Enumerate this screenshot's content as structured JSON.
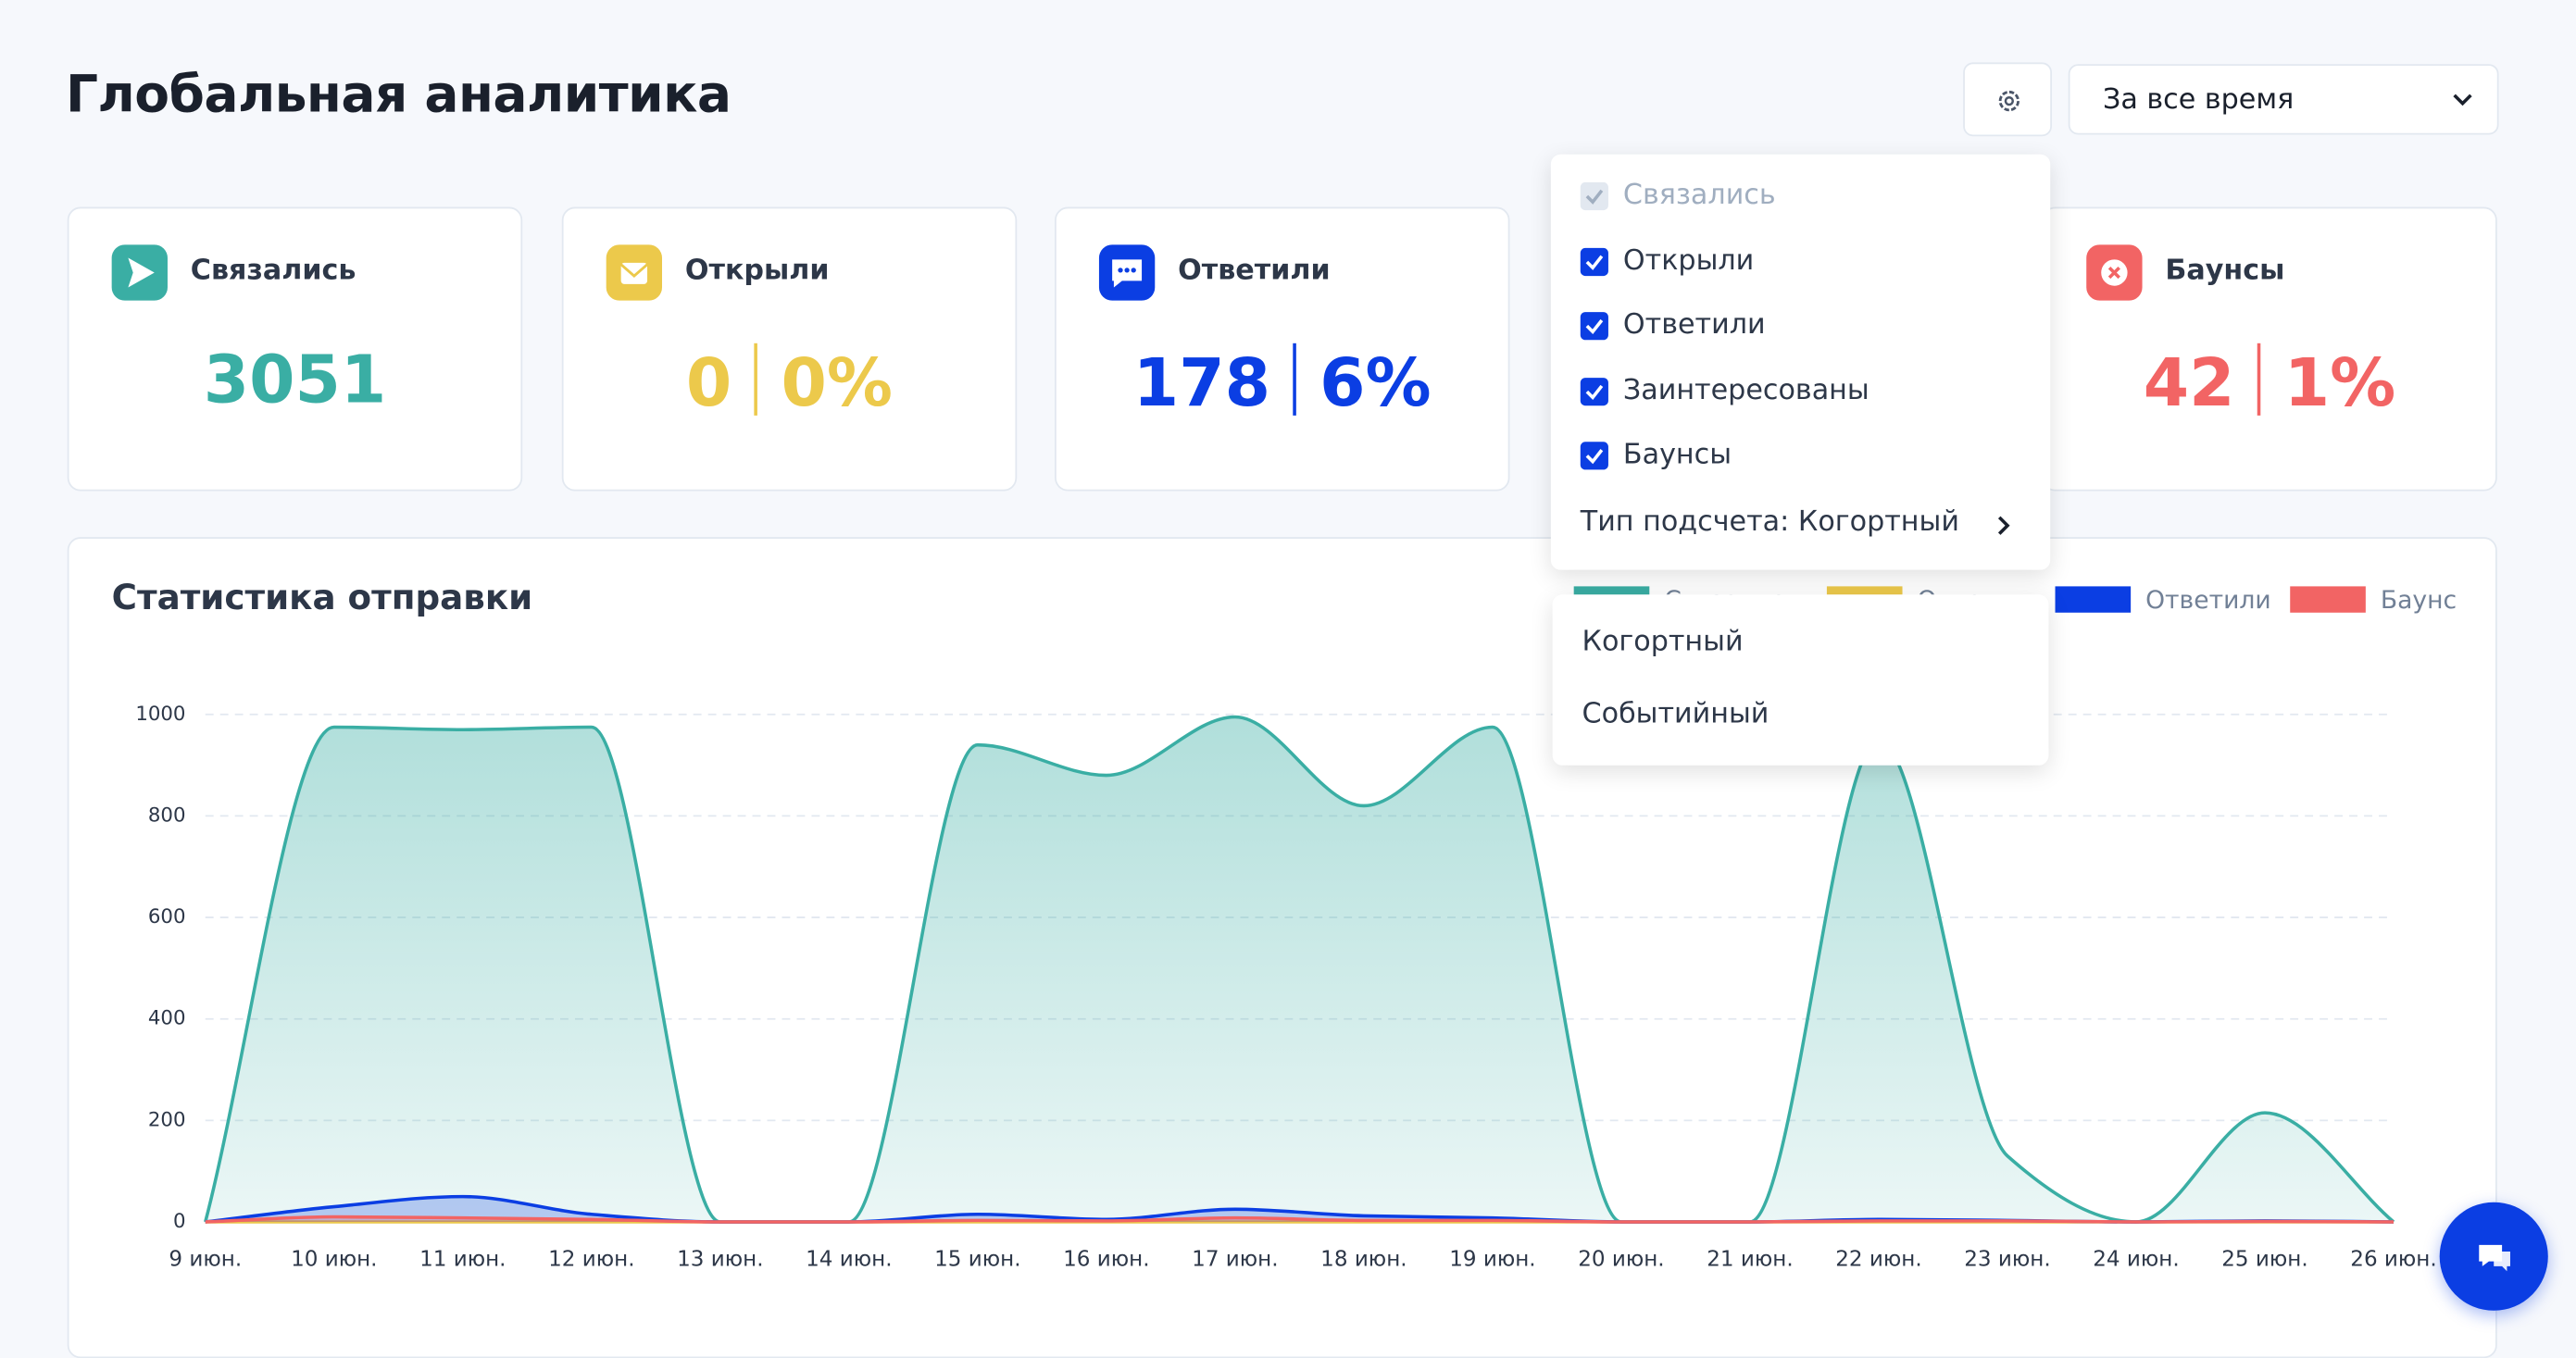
{
  "header": {
    "title": "Глобальная аналитика",
    "period": "За все время"
  },
  "cards": [
    {
      "label": "Связались",
      "value": "3051",
      "color": "#3aaea4"
    },
    {
      "label": "Открыли",
      "value": "0",
      "percent": "0%",
      "color": "#ecc94b"
    },
    {
      "label": "Ответили",
      "value": "178",
      "percent": "6%",
      "color": "#0b3ee3"
    },
    {
      "label": "Баунсы",
      "value": "42",
      "percent": "1%",
      "color": "#f26464"
    }
  ],
  "settings_menu": {
    "items": [
      {
        "label": "Связались",
        "checked": true,
        "disabled": true
      },
      {
        "label": "Открыли",
        "checked": true,
        "disabled": false
      },
      {
        "label": "Ответили",
        "checked": true,
        "disabled": false
      },
      {
        "label": "Заинтересованы",
        "checked": true,
        "disabled": false
      },
      {
        "label": "Баунсы",
        "checked": true,
        "disabled": false
      }
    ],
    "count_type": "Тип подсчета: Когортный",
    "count_options": [
      "Когортный",
      "Событийный"
    ]
  },
  "chart_data": {
    "type": "area",
    "title": "Статистика отправки",
    "categories": [
      "9 июн.",
      "10 июн.",
      "11 июн.",
      "12 июн.",
      "13 июн.",
      "14 июн.",
      "15 июн.",
      "16 июн.",
      "17 июн.",
      "18 июн.",
      "19 июн.",
      "20 июн.",
      "21 июн.",
      "22 июн.",
      "23 июн.",
      "24 июн.",
      "25 июн.",
      "26 июн."
    ],
    "series": [
      {
        "name": "Связались",
        "color": "#3aaea4",
        "values": [
          0,
          975,
          970,
          975,
          0,
          0,
          940,
          880,
          995,
          820,
          975,
          0,
          0,
          950,
          130,
          0,
          215,
          0
        ]
      },
      {
        "name": "Открыли",
        "color": "#ecc94b",
        "values": [
          0,
          0,
          0,
          0,
          0,
          0,
          0,
          0,
          0,
          0,
          0,
          0,
          0,
          0,
          0,
          0,
          0,
          0
        ]
      },
      {
        "name": "Ответили",
        "color": "#0b3ee3",
        "values": [
          0,
          30,
          50,
          15,
          0,
          0,
          15,
          5,
          25,
          12,
          8,
          0,
          0,
          5,
          3,
          0,
          2,
          0
        ]
      },
      {
        "name": "Баунс",
        "color": "#f26464",
        "values": [
          0,
          10,
          8,
          5,
          0,
          0,
          3,
          2,
          8,
          3,
          3,
          0,
          0,
          2,
          2,
          0,
          1,
          0
        ]
      }
    ],
    "ylim": [
      0,
      1000
    ],
    "yticks": [
      0,
      200,
      400,
      600,
      800,
      1000
    ],
    "grid": true
  }
}
